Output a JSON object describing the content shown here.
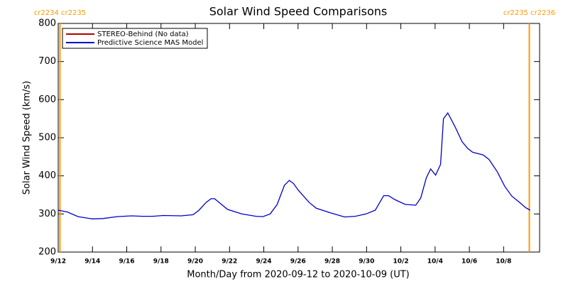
{
  "chart_data": {
    "type": "line",
    "title": "Solar Wind Speed Comparisons",
    "xlabel": "Month/Day from 2020-09-12 to 2020-10-09 (UT)",
    "ylabel": "Solar Wind Speed (km/s)",
    "xlim": [
      0,
      28.1
    ],
    "ylim": [
      200,
      800
    ],
    "yticks": [
      200,
      300,
      400,
      500,
      600,
      700,
      800
    ],
    "xticks": [
      {
        "value": 0,
        "label": "9/12"
      },
      {
        "value": 2,
        "label": "9/14"
      },
      {
        "value": 4,
        "label": "9/16"
      },
      {
        "value": 6,
        "label": "9/18"
      },
      {
        "value": 8,
        "label": "9/20"
      },
      {
        "value": 10,
        "label": "9/22"
      },
      {
        "value": 12,
        "label": "9/24"
      },
      {
        "value": 14,
        "label": "9/26"
      },
      {
        "value": 16,
        "label": "9/28"
      },
      {
        "value": 18,
        "label": "9/30"
      },
      {
        "value": 20,
        "label": "10/2"
      },
      {
        "value": 22,
        "label": "10/4"
      },
      {
        "value": 24,
        "label": "10/6"
      },
      {
        "value": 26,
        "label": "10/8"
      }
    ],
    "annotations": [
      {
        "x": 0.1,
        "label": "cr2234 cr2235",
        "color": "#ff9900"
      },
      {
        "x": 27.5,
        "label": "cr2235 cr2236",
        "color": "#ff9900"
      }
    ],
    "series": [
      {
        "name": "STEREO-Behind (No data)",
        "color": "#b00000",
        "x": [],
        "values": []
      },
      {
        "name": "Predictive Science MAS Model",
        "color": "#0000cc",
        "x": [
          0,
          0.54,
          1.16,
          1.99,
          2.61,
          3.44,
          4.27,
          4.9,
          5.52,
          6.14,
          7.18,
          7.88,
          8.22,
          8.63,
          8.92,
          9.13,
          9.88,
          10.71,
          11.54,
          11.95,
          12.37,
          12.78,
          13.2,
          13.49,
          13.73,
          14.02,
          14.65,
          15.06,
          15.89,
          16.72,
          17.34,
          17.97,
          18.51,
          19.0,
          19.29,
          19.63,
          20.25,
          20.87,
          21.16,
          21.49,
          21.74,
          22.03,
          22.32,
          22.49,
          22.74,
          23.15,
          23.57,
          23.9,
          24.19,
          24.81,
          25.15,
          25.64,
          26.06,
          26.47,
          26.89,
          27.3,
          27.55
        ],
        "values": [
          310,
          305,
          293,
          287,
          288,
          293,
          295,
          294,
          294,
          296,
          295,
          298,
          310,
          330,
          340,
          340,
          312,
          300,
          294,
          293,
          300,
          325,
          375,
          388,
          380,
          362,
          330,
          315,
          303,
          292,
          294,
          300,
          310,
          348,
          348,
          338,
          325,
          323,
          342,
          395,
          418,
          402,
          430,
          550,
          565,
          530,
          490,
          472,
          462,
          455,
          443,
          410,
          373,
          347,
          332,
          316,
          310
        ]
      }
    ]
  }
}
